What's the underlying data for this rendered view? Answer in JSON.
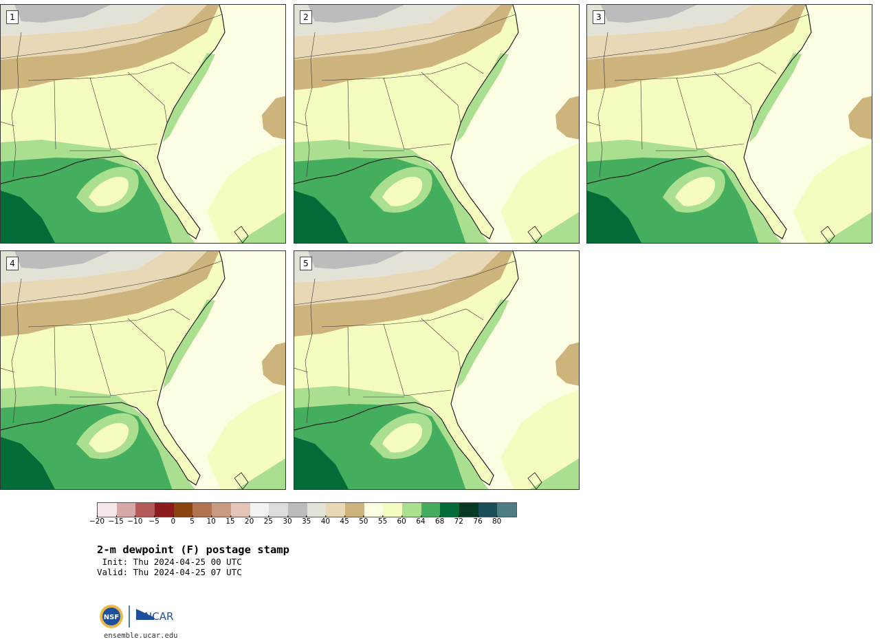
{
  "product": {
    "title": "2-m dewpoint (F) postage stamp",
    "init": " Init: Thu 2024-04-25 00 UTC",
    "valid": "Valid: Thu 2024-04-25 07 UTC",
    "site": "ensemble.ucar.edu"
  },
  "members": [
    {
      "label": "1"
    },
    {
      "label": "2"
    },
    {
      "label": "3"
    },
    {
      "label": "4"
    },
    {
      "label": "5"
    }
  ],
  "colorbar": {
    "ticks": [
      "−20",
      "−15",
      "−10",
      "−5",
      "0",
      "5",
      "10",
      "15",
      "20",
      "25",
      "30",
      "35",
      "40",
      "45",
      "50",
      "55",
      "60",
      "64",
      "68",
      "72",
      "76",
      "80"
    ],
    "colors": [
      "#f6e8e8",
      "#d8a8a8",
      "#b45a5a",
      "#8c1c1c",
      "#8c4510",
      "#b07450",
      "#c89a80",
      "#e4c4b4",
      "#f2f2f0",
      "#dcdcdc",
      "#bcbcbc",
      "#e2e2d6",
      "#e8d8b6",
      "#cdb47c",
      "#fdfde4",
      "#f6fbc0",
      "#aadf90",
      "#44ad5e",
      "#036b37",
      "#073a23",
      "#1b4e58",
      "#4e7c84"
    ]
  },
  "logos": {
    "nsf_text": "NSF",
    "ncar_text": "NCAR"
  },
  "map_colors": {
    "water_outer": "#fbfbe6",
    "c50": "#fdfde4",
    "c55": "#f6fbc0",
    "c60": "#aadf90",
    "c64": "#44ad5e",
    "c68": "#036b37",
    "c45": "#cdb47c",
    "c40": "#e8d8b6",
    "c35": "#e2e2d6",
    "c30": "#bcbcbc"
  }
}
